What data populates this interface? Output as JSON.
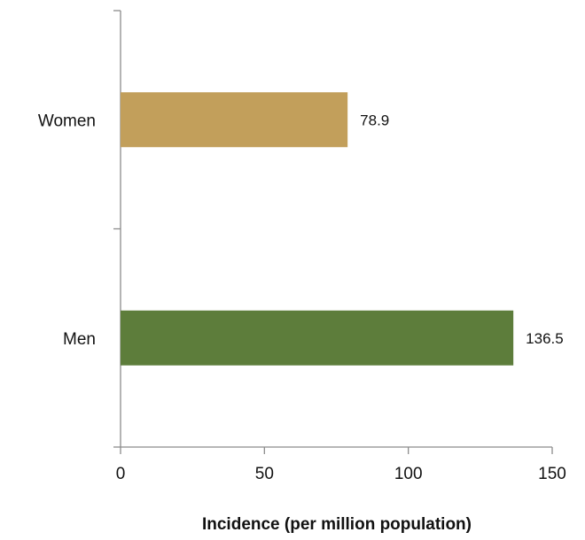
{
  "chart_data": {
    "type": "bar",
    "orientation": "horizontal",
    "categories": [
      "Women",
      "Men"
    ],
    "values": [
      78.9,
      136.5
    ],
    "data_labels": [
      "78.9",
      "136.5"
    ],
    "bar_colors": [
      "#c29f5b",
      "#5d7d3b"
    ],
    "title": "",
    "xlabel": "Incidence (per million population)",
    "ylabel": "",
    "xlim": [
      0,
      150
    ],
    "xticks": [
      0,
      50,
      100,
      150
    ],
    "xtick_labels": [
      "0",
      "50",
      "100",
      "150"
    ],
    "grid": false,
    "legend": "none"
  }
}
